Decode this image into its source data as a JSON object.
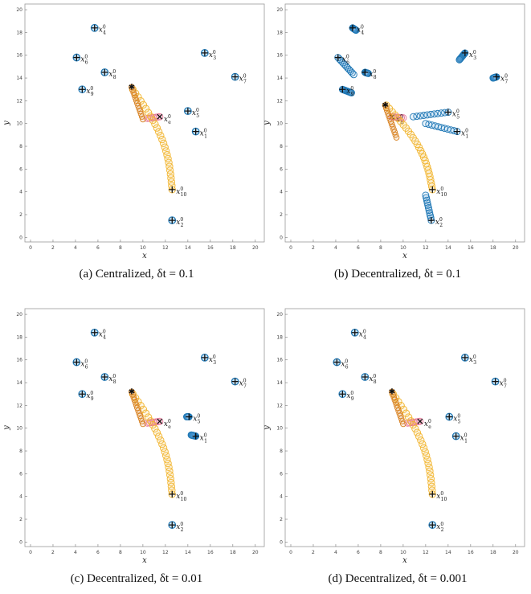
{
  "chart_data": [
    {
      "type": "scatter",
      "caption": "(a) Centralized, δt = 0.1",
      "xlabel": "x",
      "ylabel": "y",
      "xlim": [
        -0.5,
        20.8
      ],
      "ylim": [
        -0.4,
        20.5
      ],
      "ticks": [
        0,
        2,
        4,
        6,
        8,
        10,
        12,
        14,
        16,
        18,
        20
      ],
      "evader": {
        "label": "x_e^0",
        "start": [
          11.5,
          10.6
        ],
        "end": [
          10.4,
          10.45
        ]
      },
      "meet": [
        9.0,
        13.2
      ],
      "pursuers": [
        {
          "label": "x_1^0",
          "start": [
            14.7,
            9.3
          ],
          "end": [
            14.7,
            9.3
          ]
        },
        {
          "label": "x_2^0",
          "start": [
            12.6,
            1.5
          ],
          "end": [
            12.6,
            1.5
          ]
        },
        {
          "label": "x_3^0",
          "start": [
            15.5,
            16.2
          ],
          "end": [
            15.5,
            16.2
          ]
        },
        {
          "label": "x_4^0",
          "start": [
            5.7,
            18.4
          ],
          "end": [
            5.7,
            18.4
          ]
        },
        {
          "label": "x_5^0",
          "start": [
            14.0,
            11.1
          ],
          "end": [
            14.0,
            11.1
          ]
        },
        {
          "label": "x_6^0",
          "start": [
            4.1,
            15.8
          ],
          "end": [
            4.1,
            15.8
          ]
        },
        {
          "label": "x_7^0",
          "start": [
            18.2,
            14.1
          ],
          "end": [
            18.2,
            14.1
          ]
        },
        {
          "label": "x_8^0",
          "start": [
            6.6,
            14.5
          ],
          "end": [
            6.6,
            14.5
          ]
        },
        {
          "label": "x_9^0",
          "start": [
            4.6,
            13.0
          ],
          "end": [
            4.6,
            13.0
          ]
        },
        {
          "label": "x_10^0",
          "start": [
            12.6,
            4.2
          ],
          "end": [
            9.1,
            13.0
          ],
          "long": true
        }
      ]
    },
    {
      "type": "scatter",
      "caption": "(b) Decentralized, δt = 0.1",
      "xlabel": "x",
      "ylabel": "y",
      "xlim": [
        -0.5,
        20.8
      ],
      "ylim": [
        -0.4,
        20.5
      ],
      "ticks": [
        0,
        2,
        4,
        6,
        8,
        10,
        12,
        14,
        16,
        18,
        20
      ],
      "evader": {
        "label": "x_e^0",
        "start": [
          9.0,
          10.6
        ],
        "end": [
          10.0,
          10.5
        ]
      },
      "meet": [
        8.4,
        11.6
      ],
      "pursuers": [
        {
          "label": "x_1^0",
          "start": [
            14.8,
            9.3
          ],
          "end": [
            12.0,
            10.0
          ]
        },
        {
          "label": "x_2^0",
          "start": [
            12.5,
            1.5
          ],
          "end": [
            12.0,
            3.7
          ]
        },
        {
          "label": "x_3^0",
          "start": [
            15.5,
            16.2
          ],
          "end": [
            15.0,
            15.6
          ]
        },
        {
          "label": "x_4^0",
          "start": [
            5.5,
            18.4
          ],
          "end": [
            5.8,
            18.2
          ]
        },
        {
          "label": "x_5^0",
          "start": [
            14.0,
            11.0
          ],
          "end": [
            10.9,
            10.6
          ]
        },
        {
          "label": "x_6^0",
          "start": [
            4.2,
            15.8
          ],
          "end": [
            5.6,
            14.3
          ]
        },
        {
          "label": "x_7^0",
          "start": [
            18.3,
            14.1
          ],
          "end": [
            18.0,
            14.0
          ]
        },
        {
          "label": "x_8^0",
          "start": [
            6.6,
            14.5
          ],
          "end": [
            6.9,
            14.4
          ]
        },
        {
          "label": "x_9^0",
          "start": [
            4.6,
            13.0
          ],
          "end": [
            5.4,
            12.7
          ]
        },
        {
          "label": "x_10^0",
          "start": [
            12.6,
            4.2
          ],
          "end": [
            8.5,
            11.6
          ],
          "long": true
        }
      ]
    },
    {
      "type": "scatter",
      "caption": "(c) Decentralized, δt = 0.01",
      "xlabel": "x",
      "ylabel": "y",
      "xlim": [
        -0.5,
        20.8
      ],
      "ylim": [
        -0.4,
        20.5
      ],
      "ticks": [
        0,
        2,
        4,
        6,
        8,
        10,
        12,
        14,
        16,
        18,
        20
      ],
      "evader": {
        "label": "x_e^0",
        "start": [
          11.5,
          10.6
        ],
        "end": [
          10.4,
          10.45
        ]
      },
      "meet": [
        9.0,
        13.2
      ],
      "pursuers": [
        {
          "label": "x_1^0",
          "start": [
            14.7,
            9.3
          ],
          "end": [
            14.3,
            9.4
          ]
        },
        {
          "label": "x_2^0",
          "start": [
            12.6,
            1.5
          ],
          "end": [
            12.6,
            1.6
          ]
        },
        {
          "label": "x_3^0",
          "start": [
            15.5,
            16.2
          ],
          "end": [
            15.5,
            16.2
          ]
        },
        {
          "label": "x_4^0",
          "start": [
            5.7,
            18.4
          ],
          "end": [
            5.7,
            18.4
          ]
        },
        {
          "label": "x_5^0",
          "start": [
            14.1,
            11.0
          ],
          "end": [
            13.9,
            11.0
          ]
        },
        {
          "label": "x_6^0",
          "start": [
            4.1,
            15.8
          ],
          "end": [
            4.1,
            15.8
          ]
        },
        {
          "label": "x_7^0",
          "start": [
            18.2,
            14.1
          ],
          "end": [
            18.2,
            14.1
          ]
        },
        {
          "label": "x_8^0",
          "start": [
            6.6,
            14.5
          ],
          "end": [
            6.6,
            14.5
          ]
        },
        {
          "label": "x_9^0",
          "start": [
            4.6,
            13.0
          ],
          "end": [
            4.6,
            13.0
          ]
        },
        {
          "label": "x_10^0",
          "start": [
            12.6,
            4.2
          ],
          "end": [
            9.1,
            13.0
          ],
          "long": true
        }
      ]
    },
    {
      "type": "scatter",
      "caption": "(d) Decentralized, δt = 0.001",
      "xlabel": "x",
      "ylabel": "y",
      "xlim": [
        -0.5,
        20.8
      ],
      "ylim": [
        -0.4,
        20.5
      ],
      "ticks": [
        0,
        2,
        4,
        6,
        8,
        10,
        12,
        14,
        16,
        18,
        20
      ],
      "evader": {
        "label": "x_e^0",
        "start": [
          11.5,
          10.6
        ],
        "end": [
          10.4,
          10.45
        ]
      },
      "meet": [
        9.0,
        13.2
      ],
      "pursuers": [
        {
          "label": "x_1^0",
          "start": [
            14.7,
            9.3
          ],
          "end": [
            14.7,
            9.3
          ]
        },
        {
          "label": "x_2^0",
          "start": [
            12.6,
            1.5
          ],
          "end": [
            12.6,
            1.5
          ]
        },
        {
          "label": "x_3^0",
          "start": [
            15.5,
            16.2
          ],
          "end": [
            15.5,
            16.2
          ]
        },
        {
          "label": "x_4^0",
          "start": [
            5.7,
            18.4
          ],
          "end": [
            5.7,
            18.4
          ]
        },
        {
          "label": "x_5^0",
          "start": [
            14.1,
            11.0
          ],
          "end": [
            14.1,
            11.0
          ]
        },
        {
          "label": "x_6^0",
          "start": [
            4.1,
            15.8
          ],
          "end": [
            4.1,
            15.8
          ]
        },
        {
          "label": "x_7^0",
          "start": [
            18.2,
            14.1
          ],
          "end": [
            18.2,
            14.1
          ]
        },
        {
          "label": "x_8^0",
          "start": [
            6.6,
            14.5
          ],
          "end": [
            6.6,
            14.5
          ]
        },
        {
          "label": "x_9^0",
          "start": [
            4.6,
            13.0
          ],
          "end": [
            4.6,
            13.0
          ]
        },
        {
          "label": "x_10^0",
          "start": [
            12.6,
            4.2
          ],
          "end": [
            9.1,
            13.0
          ],
          "long": true
        }
      ]
    }
  ],
  "colors": {
    "pursuer": "#1f77b4",
    "pursuer_fill": "#5aa8dc",
    "evader": "#e8799b",
    "evader_marker": "#d62728",
    "long_pursuer": "#f2b632",
    "long_pursuer_dark": "#d98324",
    "frame": "#9a9a9a"
  },
  "captions": {
    "a": "(a) Centralized, δt = 0.1",
    "b": "(b) Decentralized, δt = 0.1",
    "c": "(c) Decentralized, δt = 0.01",
    "d": "(d) Decentralized, δt = 0.001"
  }
}
